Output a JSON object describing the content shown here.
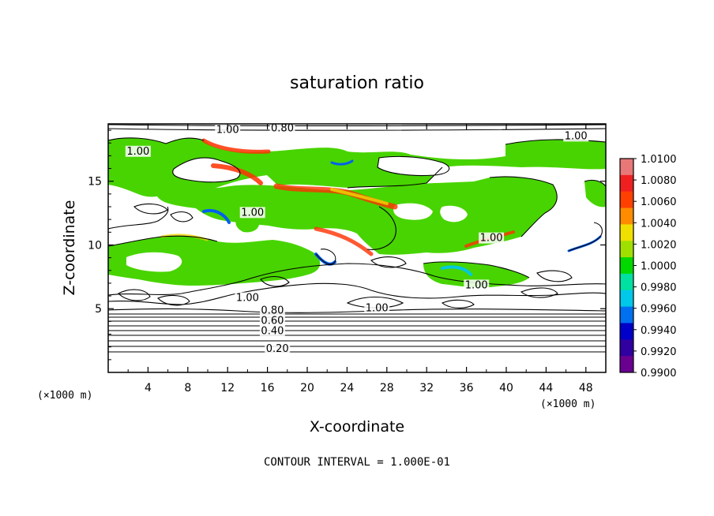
{
  "chart_data": {
    "type": "heatmap",
    "title": "saturation ratio",
    "xlabel": "X-coordinate",
    "ylabel": "Z-coordinate",
    "x_unit": "(×1000 m)",
    "x_unit_right": "(×1000 m)",
    "xlim": [
      0,
      50
    ],
    "ylim": [
      0,
      19.5
    ],
    "x_ticks": [
      4,
      8,
      12,
      16,
      20,
      24,
      28,
      32,
      36,
      40,
      44,
      48
    ],
    "y_ticks": [
      5,
      10,
      15
    ],
    "colorbar": {
      "ticks": [
        "1.0100",
        "1.0080",
        "1.0060",
        "1.0040",
        "1.0020",
        "1.0000",
        "0.9980",
        "0.9960",
        "0.9940",
        "0.9920",
        "0.9900"
      ],
      "colors": [
        "#e87878",
        "#f02020",
        "#ff4000",
        "#ff8c00",
        "#f0e000",
        "#a0e000",
        "#00d800",
        "#00e0a0",
        "#00c8e8",
        "#0070f0",
        "#0000c8",
        "#3000a0",
        "#6a0090"
      ]
    },
    "contour_labels": [
      {
        "text": "1.00",
        "x": 12,
        "z": 18.8
      },
      {
        "text": "0.80",
        "x": 17.5,
        "z": 18.9
      },
      {
        "text": "1.00",
        "x": 47,
        "z": 18.3
      },
      {
        "text": "1.00",
        "x": 3,
        "z": 17.1
      },
      {
        "text": "1.00",
        "x": 14.5,
        "z": 12.3
      },
      {
        "text": "1.00",
        "x": 38.5,
        "z": 10.3
      },
      {
        "text": "1.00",
        "x": 37,
        "z": 6.6
      },
      {
        "text": "1.00",
        "x": 14,
        "z": 5.6
      },
      {
        "text": "1.00",
        "x": 27,
        "z": 4.8
      },
      {
        "text": "0.80",
        "x": 16.5,
        "z": 4.6
      },
      {
        "text": "0.60",
        "x": 16.5,
        "z": 3.8
      },
      {
        "text": "0.40",
        "x": 16.5,
        "z": 3.0
      },
      {
        "text": "0.20",
        "x": 17,
        "z": 1.6
      }
    ],
    "footer": "CONTOUR INTERVAL = 1.000E-01"
  }
}
